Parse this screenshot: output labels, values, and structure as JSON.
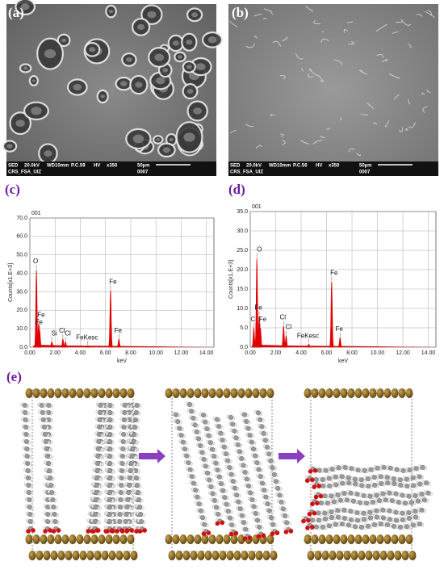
{
  "panels": {
    "a": {
      "label": "(a)",
      "info_row1": [
        "SED",
        "20.0kV",
        "WD10mm",
        "P.C.59",
        "HV",
        "x350",
        "50µm"
      ],
      "info_row2": [
        "CRS_FSA_UIZ",
        "0007"
      ]
    },
    "b": {
      "label": "(b)",
      "info_row1": [
        "SED",
        "20.0kV",
        "WD10mm",
        "P.C.56",
        "HV",
        "x350",
        "50µm"
      ],
      "info_row2": [
        "CRS_FSA_UIZ",
        "0007"
      ]
    },
    "e": {
      "label": "(e)"
    }
  },
  "chart_data": [
    {
      "type": "spectrum",
      "panel_label": "(c)",
      "title": "001",
      "y_label": "Counts[x1.E+3]",
      "x_label": "keV",
      "x": [
        0.52,
        0.7,
        0.78,
        1.74,
        2.62,
        2.82,
        4.6,
        6.4,
        7.06
      ],
      "values": [
        42,
        13,
        9,
        3,
        4.5,
        3,
        0.8,
        31,
        4.5
      ],
      "peak_labels": [
        "O",
        "Fe",
        "Fe",
        "Si",
        "Cl",
        "Cl",
        "FeKesc",
        "Fe",
        "Fe"
      ],
      "color": "#e00000",
      "xlim": [
        0,
        14.6
      ],
      "xticks": [
        {
          "value": 0,
          "label": "0.00"
        },
        {
          "value": 2,
          "label": "2.00"
        },
        {
          "value": 4,
          "label": "4.00"
        },
        {
          "value": 6,
          "label": "6.00"
        },
        {
          "value": 8,
          "label": "8.00"
        },
        {
          "value": 10,
          "label": "10.00"
        },
        {
          "value": 12,
          "label": "12.00"
        },
        {
          "value": 14,
          "label": "14.00"
        }
      ],
      "ylim": [
        0,
        70
      ],
      "yticks": [
        {
          "value": 0,
          "label": "0.0"
        },
        {
          "value": 10,
          "label": "10.0"
        },
        {
          "value": 20,
          "label": "20.0"
        },
        {
          "value": 30,
          "label": "30.0"
        },
        {
          "value": 40,
          "label": "40.0"
        },
        {
          "value": 50,
          "label": "50.0"
        },
        {
          "value": 60,
          "label": "60.0"
        },
        {
          "value": 70,
          "label": "70.0"
        }
      ],
      "grid": true
    },
    {
      "type": "spectrum",
      "panel_label": "(d)",
      "title": "001",
      "y_label": "Counts[x1.E+3]",
      "x_label": "keV",
      "x": [
        0.28,
        0.52,
        0.7,
        0.8,
        2.62,
        2.82,
        4.6,
        6.4,
        7.06
      ],
      "values": [
        5,
        23,
        8,
        5,
        5.5,
        3,
        0.8,
        17,
        2.5
      ],
      "peak_labels": [
        "C",
        "O",
        "Fe",
        "Fe",
        "Cl",
        "Cl",
        "FeKesc",
        "Fe",
        "Fe"
      ],
      "color": "#e00000",
      "xlim": [
        0,
        14.6
      ],
      "xticks": [
        {
          "value": 0,
          "label": "0.00"
        },
        {
          "value": 2,
          "label": "2.00"
        },
        {
          "value": 4,
          "label": "4.00"
        },
        {
          "value": 6,
          "label": "6.00"
        },
        {
          "value": 8,
          "label": "8.00"
        },
        {
          "value": 10,
          "label": "10.00"
        },
        {
          "value": 12,
          "label": "12.00"
        },
        {
          "value": 14,
          "label": "14.00"
        }
      ],
      "ylim": [
        0,
        35
      ],
      "yticks": [
        {
          "value": 0,
          "label": "0.0"
        },
        {
          "value": 5,
          "label": "5.0"
        },
        {
          "value": 10,
          "label": "10.0"
        },
        {
          "value": 15,
          "label": "15.0"
        },
        {
          "value": 20,
          "label": "20.0"
        },
        {
          "value": 25,
          "label": "25.0"
        },
        {
          "value": 30,
          "label": "30.0"
        },
        {
          "value": 35,
          "label": "35.0"
        }
      ],
      "grid": true
    }
  ]
}
